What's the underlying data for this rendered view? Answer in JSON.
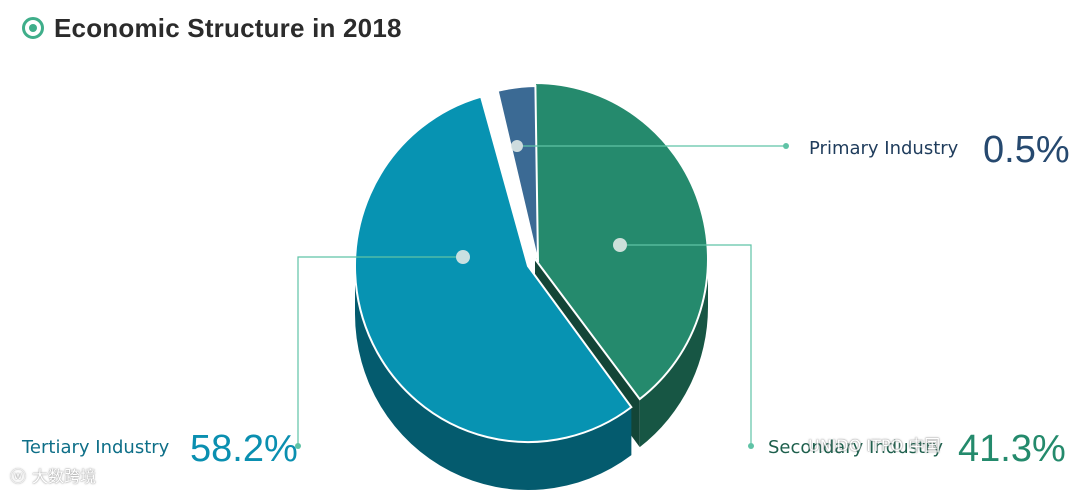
{
  "header": {
    "title": "Economic Structure in 2018"
  },
  "chart_data": {
    "type": "pie",
    "title": "Economic Structure in 2018",
    "slices": [
      {
        "label": "Primary Industry",
        "value_label": "0.5%",
        "value": 0.5,
        "color": "#3b6a94"
      },
      {
        "label": "Secondary Industry",
        "value_label": "41.3%",
        "value": 41.3,
        "color": "#258a6d"
      },
      {
        "label": "Tertiary Industry",
        "value_label": "58.2%",
        "value": 58.2,
        "color": "#0793b2"
      }
    ],
    "legend": "none",
    "style": "3d-exploded"
  },
  "watermark": {
    "left_text": "大数跨境",
    "right_text": "UNIDO ITPO 中国"
  }
}
